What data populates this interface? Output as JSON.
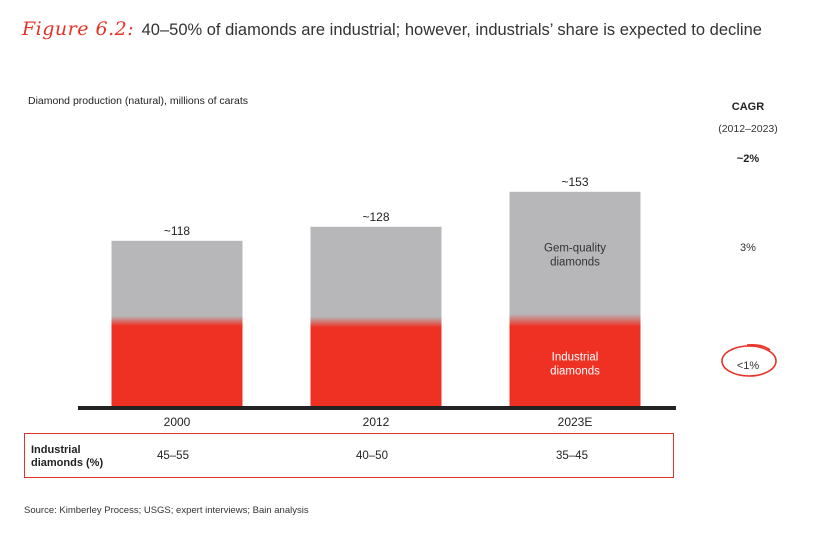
{
  "header": {
    "figure_label": "Figure 6.2:",
    "title": "40–50% of diamonds are industrial; however, industrials’ share is expected to decline"
  },
  "chart_data": {
    "type": "bar",
    "stacked": true,
    "subtitle": "Diamond production (natural), millions of carats",
    "categories": [
      "2000",
      "2012",
      "2023E"
    ],
    "totals": [
      118,
      128,
      153
    ],
    "total_labels": [
      "~118",
      "~128",
      "~153"
    ],
    "series": [
      {
        "name": "Industrial diamonds",
        "label_lines": [
          "Industrial",
          "diamonds"
        ],
        "values": [
          59,
          58,
          59
        ],
        "color": "#ef3124"
      },
      {
        "name": "Gem-quality diamonds",
        "label_lines": [
          "Gem-quality",
          "diamonds"
        ],
        "values": [
          59,
          70,
          94
        ],
        "color": "#b7b7b9"
      }
    ],
    "ylim": [
      0,
      165
    ],
    "grid": false,
    "axis_color": "#222222"
  },
  "cagr": {
    "title": "CAGR",
    "period": "(2012–2023)",
    "total": "~2%",
    "gem": "3%",
    "industrial": "<1%",
    "highlight_color": "#e63227"
  },
  "table": {
    "label_lines": [
      "Industrial",
      "diamonds (%)"
    ],
    "values": [
      "45–55",
      "40–50",
      "35–45"
    ]
  },
  "source": "Source:  Kimberley Process; USGS; expert interviews; Bain analysis"
}
